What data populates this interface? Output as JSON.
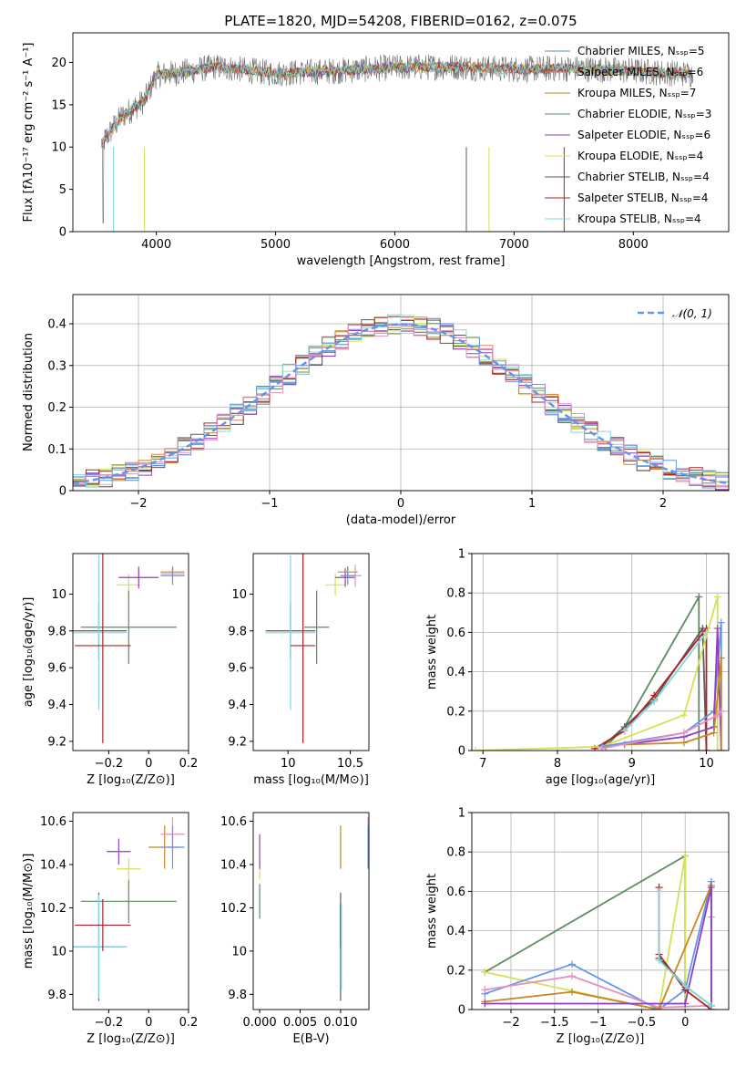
{
  "title": "PLATE=1820, MJD=54208, FIBERID=0162, z=0.075",
  "colors": [
    "#5d8aa8",
    "#e07a5f",
    "#c8861f",
    "#5e8c61",
    "#8e3fbf",
    "#d4e157",
    "#5a5a5a",
    "#b22222",
    "#80d8e0",
    "#6495ed",
    "#e88fc0"
  ],
  "chart_data": [
    {
      "id": "spectrum",
      "type": "line",
      "xlabel": "wavelength [Angstrom, rest frame]",
      "ylabel": "Flux [fλ10⁻¹⁷ erg cm⁻² s⁻¹ A⁻¹]",
      "xlim": [
        3300,
        8800
      ],
      "ylim": [
        0,
        23.5
      ],
      "xticks": [
        4000,
        5000,
        6000,
        7000,
        8000
      ],
      "yticks": [
        0,
        5,
        10,
        15,
        20
      ],
      "legend_position": "top-right",
      "series": [
        {
          "name": "Chabrier MILES, Nₛₛₚ=5",
          "color": "#5d8aa8"
        },
        {
          "name": "Salpeter MILES, Nₛₛₚ=6",
          "color": "#e07a5f"
        },
        {
          "name": "Kroupa MILES, Nₛₛₚ=7",
          "color": "#c8861f"
        },
        {
          "name": "Chabrier ELODIE, Nₛₛₚ=3",
          "color": "#5e8c61"
        },
        {
          "name": "Salpeter ELODIE, Nₛₛₚ=6",
          "color": "#8e3fbf"
        },
        {
          "name": "Kroupa ELODIE, Nₛₛₚ=4",
          "color": "#d4e157"
        },
        {
          "name": "Chabrier STELIB, Nₛₛₚ=4",
          "color": "#5a5a5a"
        },
        {
          "name": "Salpeter STELIB, Nₛₛₚ=4",
          "color": "#b22222"
        },
        {
          "name": "Kroupa STELIB, Nₛₛₚ=4",
          "color": "#80d8e0"
        }
      ],
      "continuum": {
        "x": [
          3550,
          3700,
          3900,
          4000,
          4200,
          4500,
          5000,
          5500,
          6000,
          6500,
          7000,
          7500,
          8000,
          8500
        ],
        "y": [
          10.5,
          13.5,
          15.5,
          18.5,
          18.8,
          19.5,
          18.7,
          19.0,
          19.4,
          19.5,
          19.2,
          19.3,
          19.0,
          18.6
        ]
      }
    },
    {
      "id": "residuals",
      "type": "line",
      "xlabel": "(data-model)/error",
      "ylabel": "Normed distribution",
      "xlim": [
        -2.5,
        2.5
      ],
      "ylim": [
        0,
        0.47
      ],
      "xticks": [
        -2,
        -1,
        0,
        1,
        2
      ],
      "yticks": [
        0.0,
        0.1,
        0.2,
        0.3,
        0.4
      ],
      "grid": true,
      "legend": "𝒩(0, 1)",
      "legend_position": "top-right",
      "gaussian": {
        "mean": 0,
        "sigma": 1,
        "color": "#6495ed"
      }
    },
    {
      "id": "age-vs-Z",
      "type": "scatter",
      "xlabel": "Z [log₁₀(Z/Z⊙)]",
      "ylabel": "age  [log₁₀(age/yr)]",
      "xlim": [
        -0.38,
        0.2
      ],
      "ylim": [
        9.15,
        10.22
      ],
      "xticks": [
        -0.2,
        0.0,
        0.2
      ],
      "yticks": [
        9.2,
        9.4,
        9.6,
        9.8,
        10.0
      ],
      "errorbars": [
        {
          "x": -0.1,
          "y": 10.05,
          "xerr": 0.06,
          "yerr": 0.06,
          "color": "#d4e157"
        },
        {
          "x": -0.05,
          "y": 10.09,
          "xerr": 0.1,
          "yerr": 0.06,
          "color": "#8e3fbf"
        },
        {
          "x": 0.12,
          "y": 10.12,
          "xerr": 0.06,
          "yerr": 0.03,
          "color": "#c8861f"
        },
        {
          "x": 0.12,
          "y": 10.11,
          "xerr": 0.06,
          "yerr": 0.03,
          "color": "#e88fc0"
        },
        {
          "x": 0.12,
          "y": 10.1,
          "xerr": 0.06,
          "yerr": 0.05,
          "color": "#6495ed"
        },
        {
          "x": -0.1,
          "y": 9.82,
          "xerr": 0.24,
          "yerr": 0.2,
          "color": "#5e8c61"
        },
        {
          "x": -0.25,
          "y": 9.8,
          "xerr": 0.14,
          "yerr": 0.15,
          "color": "#5a5a5a"
        },
        {
          "x": -0.25,
          "y": 9.79,
          "xerr": 0.14,
          "yerr": 0.42,
          "color": "#80d8e0"
        },
        {
          "x": -0.23,
          "y": 9.72,
          "xerr": 0.14,
          "yerr": 0.53,
          "color": "#b22222"
        }
      ]
    },
    {
      "id": "age-vs-mass",
      "type": "scatter",
      "xlabel": "mass [log₁₀(M/M⊙)]",
      "ylabel": "",
      "xlim": [
        9.72,
        10.65
      ],
      "ylim": [
        9.15,
        10.22
      ],
      "xticks": [
        10.0,
        10.5
      ],
      "yticks": [
        9.2,
        9.4,
        9.6,
        9.8,
        10.0
      ],
      "errorbars": [
        {
          "x": 10.38,
          "y": 10.05,
          "xerr": 0.08,
          "yerr": 0.06,
          "color": "#d4e157"
        },
        {
          "x": 10.46,
          "y": 10.09,
          "xerr": 0.08,
          "yerr": 0.05,
          "color": "#8e3fbf"
        },
        {
          "x": 10.48,
          "y": 10.12,
          "xerr": 0.08,
          "yerr": 0.03,
          "color": "#c8861f"
        },
        {
          "x": 10.54,
          "y": 10.1,
          "xerr": 0.05,
          "yerr": 0.06,
          "color": "#e88fc0"
        },
        {
          "x": 10.48,
          "y": 10.1,
          "xerr": 0.06,
          "yerr": 0.05,
          "color": "#6495ed"
        },
        {
          "x": 10.23,
          "y": 9.82,
          "xerr": 0.1,
          "yerr": 0.2,
          "color": "#5e8c61"
        },
        {
          "x": 10.02,
          "y": 9.8,
          "xerr": 0.2,
          "yerr": 0.15,
          "color": "#5a5a5a"
        },
        {
          "x": 10.02,
          "y": 9.79,
          "xerr": 0.2,
          "yerr": 0.42,
          "color": "#80d8e0"
        },
        {
          "x": 10.12,
          "y": 9.72,
          "xerr": 0.1,
          "yerr": 0.53,
          "color": "#b22222"
        }
      ]
    },
    {
      "id": "massweight-vs-age",
      "type": "line",
      "xlabel": "age  [log₁₀(age/yr)]",
      "ylabel": "mass weight",
      "xlim": [
        6.85,
        10.3
      ],
      "ylim": [
        0,
        1.0
      ],
      "xticks": [
        7,
        8,
        9,
        10
      ],
      "yticks": [
        0.0,
        0.2,
        0.4,
        0.6,
        0.8,
        1.0
      ],
      "grid": true,
      "series": [
        {
          "color": "#5e8c61",
          "x": [
            8.65,
            8.9,
            9.9,
            9.9
          ],
          "y": [
            0.02,
            0.12,
            0.78,
            0.0
          ]
        },
        {
          "color": "#5a5a5a",
          "x": [
            8.6,
            8.9,
            9.3,
            9.95,
            10.0
          ],
          "y": [
            0.02,
            0.12,
            0.26,
            0.62,
            0.0
          ]
        },
        {
          "color": "#b22222",
          "x": [
            8.5,
            8.9,
            9.3,
            10.0,
            10.0
          ],
          "y": [
            0.01,
            0.1,
            0.28,
            0.62,
            0.0
          ]
        },
        {
          "color": "#80d8e0",
          "x": [
            8.9,
            9.3,
            10.0
          ],
          "y": [
            0.1,
            0.25,
            0.6
          ]
        },
        {
          "color": "#d4e157",
          "x": [
            6.9,
            8.6,
            9.7,
            10.15,
            10.15
          ],
          "y": [
            0.0,
            0.02,
            0.18,
            0.78,
            0.0
          ]
        },
        {
          "color": "#6495ed",
          "x": [
            8.6,
            9.7,
            10.1,
            10.2,
            10.2
          ],
          "y": [
            0.02,
            0.09,
            0.2,
            0.65,
            0.0
          ]
        },
        {
          "color": "#8e3fbf",
          "x": [
            8.9,
            9.7,
            10.1,
            10.15,
            10.2
          ],
          "y": [
            0.03,
            0.07,
            0.12,
            0.62,
            0.0
          ]
        },
        {
          "color": "#c8861f",
          "x": [
            8.9,
            9.7,
            10.1,
            10.2,
            10.2
          ],
          "y": [
            0.03,
            0.04,
            0.09,
            0.47,
            0.0
          ]
        },
        {
          "color": "#e88fc0",
          "x": [
            8.6,
            9.7,
            10.15,
            10.2
          ],
          "y": [
            0.01,
            0.09,
            0.18,
            0.2
          ]
        }
      ]
    },
    {
      "id": "mass-vs-Z",
      "type": "scatter",
      "xlabel": "Z [log₁₀(Z/Z⊙)]",
      "ylabel": "mass [log₁₀(M/M⊙)]",
      "xlim": [
        -0.38,
        0.2
      ],
      "ylim": [
        9.73,
        10.64
      ],
      "xticks": [
        -0.2,
        0.0,
        0.2
      ],
      "yticks": [
        9.8,
        10.0,
        10.2,
        10.4,
        10.6
      ],
      "errorbars": [
        {
          "x": -0.1,
          "y": 10.38,
          "xerr": 0.06,
          "yerr": 0.05,
          "color": "#d4e157"
        },
        {
          "x": -0.15,
          "y": 10.46,
          "xerr": 0.06,
          "yerr": 0.06,
          "color": "#8e3fbf"
        },
        {
          "x": 0.08,
          "y": 10.48,
          "xerr": 0.08,
          "yerr": 0.1,
          "color": "#c8861f"
        },
        {
          "x": 0.12,
          "y": 10.54,
          "xerr": 0.06,
          "yerr": 0.08,
          "color": "#e88fc0"
        },
        {
          "x": 0.12,
          "y": 10.48,
          "xerr": 0.06,
          "yerr": 0.1,
          "color": "#6495ed"
        },
        {
          "x": -0.1,
          "y": 10.23,
          "xerr": 0.24,
          "yerr": 0.1,
          "color": "#5e8c61"
        },
        {
          "x": -0.25,
          "y": 10.02,
          "xerr": 0.14,
          "yerr": 0.25,
          "color": "#5a5a5a"
        },
        {
          "x": -0.25,
          "y": 10.02,
          "xerr": 0.14,
          "yerr": 0.24,
          "color": "#80d8e0"
        },
        {
          "x": -0.23,
          "y": 10.12,
          "xerr": 0.14,
          "yerr": 0.12,
          "color": "#b22222"
        }
      ]
    },
    {
      "id": "mass-vs-ebv",
      "type": "scatter",
      "xlabel": "E(B-V)",
      "ylabel": "",
      "xlim": [
        -0.0008,
        0.0135
      ],
      "ylim": [
        9.73,
        10.64
      ],
      "xticks": [
        0.0,
        0.005,
        0.01
      ],
      "xtick_labels": [
        "0.000",
        "0.005",
        "0.010"
      ],
      "yticks": [
        9.8,
        10.0,
        10.2,
        10.4,
        10.6
      ],
      "errorbars": [
        {
          "x": 0.0,
          "y": 10.38,
          "xerr": 0.0,
          "yerr": 0.05,
          "color": "#d4e157"
        },
        {
          "x": 0.0,
          "y": 10.46,
          "xerr": 0.0,
          "yerr": 0.08,
          "color": "#8e3fbf"
        },
        {
          "x": 0.0,
          "y": 10.23,
          "xerr": 0.0,
          "yerr": 0.08,
          "color": "#5e8c61"
        },
        {
          "x": 0.01,
          "y": 10.48,
          "xerr": 0.0,
          "yerr": 0.1,
          "color": "#c8861f"
        },
        {
          "x": 0.01,
          "y": 10.12,
          "xerr": 0.0,
          "yerr": 0.1,
          "color": "#b22222"
        },
        {
          "x": 0.01,
          "y": 10.02,
          "xerr": 0.0,
          "yerr": 0.25,
          "color": "#5a5a5a"
        },
        {
          "x": 0.0101,
          "y": 10.02,
          "xerr": 0.0,
          "yerr": 0.2,
          "color": "#80d8e0"
        },
        {
          "x": 0.0134,
          "y": 10.54,
          "xerr": 0.0,
          "yerr": 0.08,
          "color": "#e88fc0"
        },
        {
          "x": 0.0134,
          "y": 10.48,
          "xerr": 0.0,
          "yerr": 0.1,
          "color": "#6495ed"
        }
      ]
    },
    {
      "id": "massweight-vs-Z",
      "type": "line",
      "xlabel": "Z [log₁₀(Z/Z⊙)]",
      "ylabel": "mass weight",
      "xlim": [
        -2.45,
        0.5
      ],
      "ylim": [
        0,
        1.0
      ],
      "xticks": [
        -2.0,
        -1.5,
        -1.0,
        -0.5,
        0.0
      ],
      "yticks": [
        0.0,
        0.2,
        0.4,
        0.6,
        0.8,
        1.0
      ],
      "grid": true,
      "series": [
        {
          "color": "#5e8c61",
          "x": [
            -2.3,
            0.0,
            0.0
          ],
          "y": [
            0.19,
            0.78,
            0.0
          ]
        },
        {
          "color": "#d4e157",
          "x": [
            -2.3,
            -0.3,
            0.0,
            0.0
          ],
          "y": [
            0.19,
            0.0,
            0.78,
            0.0
          ]
        },
        {
          "color": "#6495ed",
          "x": [
            -2.3,
            -1.3,
            -0.3,
            0.0,
            0.3,
            0.3
          ],
          "y": [
            0.08,
            0.23,
            0.0,
            0.1,
            0.65,
            0.02
          ]
        },
        {
          "color": "#e88fc0",
          "x": [
            -2.3,
            -1.3,
            -0.3,
            0.3,
            0.3
          ],
          "y": [
            0.1,
            0.17,
            0.01,
            0.02,
            0.47
          ]
        },
        {
          "color": "#c8861f",
          "x": [
            -2.3,
            -1.3,
            -0.3,
            0.3,
            0.3
          ],
          "y": [
            0.04,
            0.09,
            0.0,
            0.63,
            0.0
          ]
        },
        {
          "color": "#8e3fbf",
          "x": [
            -2.3,
            0.0,
            0.3,
            0.3
          ],
          "y": [
            0.03,
            0.03,
            0.62,
            0.0
          ]
        },
        {
          "color": "#5a5a5a",
          "x": [
            -0.3,
            -0.3,
            0.0,
            0.3
          ],
          "y": [
            0.62,
            0.26,
            0.12,
            0.02
          ]
        },
        {
          "color": "#b22222",
          "x": [
            -0.3,
            -0.3,
            0.0,
            0.3
          ],
          "y": [
            0.62,
            0.28,
            0.1,
            0.0
          ]
        },
        {
          "color": "#80d8e0",
          "x": [
            -0.3,
            -0.3,
            0.0,
            0.3
          ],
          "y": [
            0.6,
            0.25,
            0.12,
            0.02
          ]
        }
      ]
    }
  ]
}
